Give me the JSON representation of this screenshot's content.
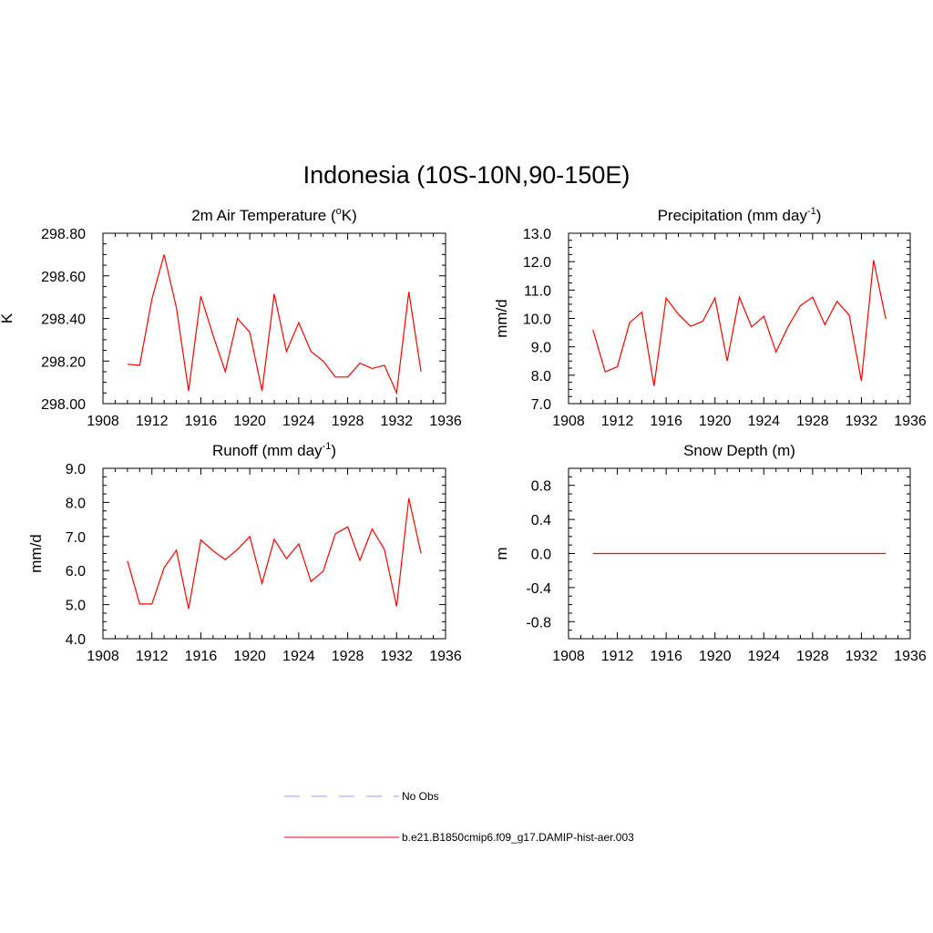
{
  "figure": {
    "title": "Indonesia (10S-10N,90-150E)"
  },
  "legend": {
    "placement": "bottom-center",
    "entries": [
      {
        "label": "No Obs",
        "color": "#9999ff",
        "style": "dashed"
      },
      {
        "label": "b.e21.B1850cmip6.f09_g17.DAMIP-hist-aer.003",
        "color": "#ff0000",
        "style": "solid"
      }
    ]
  },
  "chart_data": [
    {
      "type": "line",
      "title_parts": [
        "2m Air Temperature (",
        "o",
        "K)"
      ],
      "ylabel": "K",
      "xlim": [
        1908,
        1936
      ],
      "ylim": [
        298.0,
        298.8
      ],
      "xticks": [
        1908,
        1912,
        1916,
        1920,
        1924,
        1928,
        1932,
        1936
      ],
      "yticks": [
        298.0,
        298.2,
        298.4,
        298.6,
        298.8
      ],
      "ytick_labels": [
        "298.00",
        "298.20",
        "298.40",
        "298.60",
        "298.80"
      ],
      "grid": false,
      "x": [
        1910,
        1911,
        1912,
        1913,
        1914,
        1915,
        1916,
        1917,
        1918,
        1919,
        1920,
        1921,
        1922,
        1923,
        1924,
        1925,
        1926,
        1927,
        1928,
        1929,
        1930,
        1931,
        1932,
        1933,
        1934
      ],
      "series": [
        {
          "color": "#ff0000",
          "values": [
            298.185,
            298.18,
            298.49,
            298.7,
            298.45,
            298.06,
            298.505,
            298.32,
            298.15,
            298.4,
            298.335,
            298.06,
            298.515,
            298.245,
            298.38,
            298.245,
            298.2,
            298.125,
            298.125,
            298.19,
            298.165,
            298.18,
            298.05,
            298.525,
            298.15
          ]
        }
      ]
    },
    {
      "type": "line",
      "title_parts": [
        "Precipitation (mm day",
        "-1",
        ")"
      ],
      "ylabel": "mm/d",
      "xlim": [
        1908,
        1936
      ],
      "ylim": [
        7.0,
        13.0
      ],
      "xticks": [
        1908,
        1912,
        1916,
        1920,
        1924,
        1928,
        1932,
        1936
      ],
      "yticks": [
        7.0,
        8.0,
        9.0,
        10.0,
        11.0,
        12.0,
        13.0
      ],
      "ytick_labels": [
        "7.0",
        "8.0",
        "9.0",
        "10.0",
        "11.0",
        "12.0",
        "13.0"
      ],
      "grid": false,
      "x": [
        1910,
        1911,
        1912,
        1913,
        1914,
        1915,
        1916,
        1917,
        1918,
        1919,
        1920,
        1921,
        1922,
        1923,
        1924,
        1925,
        1926,
        1927,
        1928,
        1929,
        1930,
        1931,
        1932,
        1933,
        1934
      ],
      "series": [
        {
          "color": "#ff0000",
          "values": [
            9.6,
            8.12,
            8.3,
            9.85,
            10.22,
            7.62,
            10.72,
            10.15,
            9.72,
            9.9,
            10.72,
            8.5,
            10.75,
            9.7,
            10.08,
            8.82,
            9.72,
            10.45,
            10.75,
            9.78,
            10.6,
            10.12,
            7.8,
            12.05,
            9.98
          ]
        }
      ]
    },
    {
      "type": "line",
      "title_parts": [
        "Runoff (mm day",
        "-1",
        ")"
      ],
      "ylabel": "mm/d",
      "xlim": [
        1908,
        1936
      ],
      "ylim": [
        4.0,
        9.0
      ],
      "xticks": [
        1908,
        1912,
        1916,
        1920,
        1924,
        1928,
        1932,
        1936
      ],
      "yticks": [
        4.0,
        5.0,
        6.0,
        7.0,
        8.0,
        9.0
      ],
      "ytick_labels": [
        "4.0",
        "5.0",
        "6.0",
        "7.0",
        "8.0",
        "9.0"
      ],
      "grid": false,
      "x": [
        1910,
        1911,
        1912,
        1913,
        1914,
        1915,
        1916,
        1917,
        1918,
        1919,
        1920,
        1921,
        1922,
        1923,
        1924,
        1925,
        1926,
        1927,
        1928,
        1929,
        1930,
        1931,
        1932,
        1933,
        1934
      ],
      "series": [
        {
          "color": "#ff0000",
          "values": [
            6.28,
            5.02,
            5.02,
            6.08,
            6.6,
            4.88,
            6.9,
            6.58,
            6.32,
            6.62,
            7.0,
            5.62,
            6.92,
            6.35,
            6.78,
            5.68,
            5.98,
            7.08,
            7.28,
            6.3,
            7.22,
            6.62,
            4.95,
            8.12,
            6.5
          ]
        }
      ]
    },
    {
      "type": "line",
      "title_parts": [
        "Snow Depth (m)"
      ],
      "ylabel": "m",
      "xlim": [
        1908,
        1936
      ],
      "ylim": [
        -1.0,
        1.0
      ],
      "xticks": [
        1908,
        1912,
        1916,
        1920,
        1924,
        1928,
        1932,
        1936
      ],
      "yticks": [
        -0.8,
        -0.4,
        0.0,
        0.4,
        0.8
      ],
      "ytick_labels": [
        "-0.8",
        "-0.4",
        "0.0",
        "0.4",
        "0.8"
      ],
      "grid": false,
      "x": [
        1910,
        1934
      ],
      "series": [
        {
          "color": "#ff0000",
          "values": [
            0.0,
            0.0
          ]
        }
      ]
    }
  ]
}
